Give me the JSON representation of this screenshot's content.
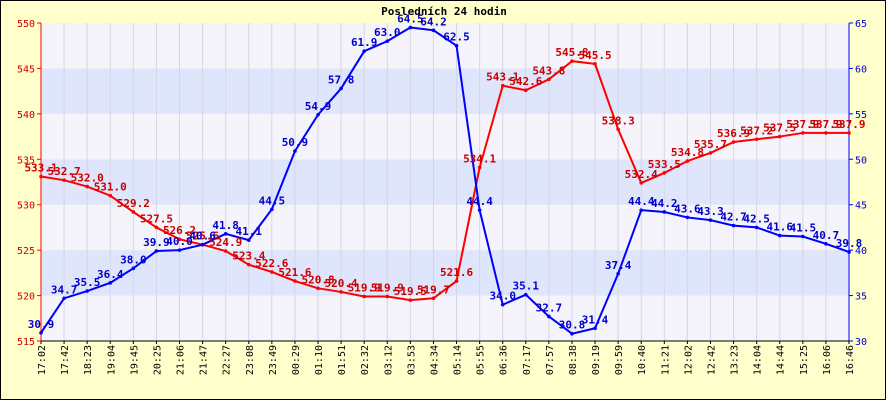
{
  "chart_data": {
    "type": "line",
    "title": "Posledních 24 hodin",
    "x": [
      "17:02",
      "17:42",
      "18:23",
      "19:04",
      "19:45",
      "20:25",
      "21:06",
      "21:47",
      "22:27",
      "23:08",
      "23:49",
      "00:29",
      "01:10",
      "01:51",
      "02:32",
      "03:12",
      "03:53",
      "04:34",
      "05:14",
      "05:55",
      "06:36",
      "07:17",
      "07:57",
      "08:38",
      "09:19",
      "09:59",
      "10:40",
      "11:21",
      "12:02",
      "12:42",
      "13:23",
      "14:04",
      "14:44",
      "15:25",
      "16:06",
      "16:46"
    ],
    "grid": true,
    "series": [
      {
        "name": "left-axis",
        "axis": "left",
        "color": "#ff0000",
        "label_color": "#cc0000",
        "ylim": [
          515,
          550
        ],
        "yticks": [
          515,
          520,
          525,
          530,
          535,
          540,
          545,
          550
        ],
        "values": [
          533.1,
          532.7,
          532.0,
          531.0,
          529.2,
          527.5,
          526.2,
          525.6,
          524.9,
          523.4,
          522.6,
          521.6,
          520.8,
          520.4,
          519.9,
          519.9,
          519.5,
          519.7,
          521.6,
          534.1,
          543.1,
          542.6,
          543.8,
          545.8,
          545.5,
          538.3,
          532.4,
          533.5,
          534.8,
          535.7,
          536.9,
          537.2,
          537.5,
          537.9,
          537.9,
          537.9
        ],
        "labels": [
          "533.1",
          "532.7",
          "532.0",
          "531.0",
          "529.2",
          "527.5",
          "526.2",
          "525.6",
          "524.9",
          "523.4",
          "522.6",
          "521.6",
          "520.8",
          "520.4",
          "519.9",
          "519.9",
          "519.5",
          "519.7",
          "521.6",
          "534.1",
          "543.1",
          "542.6",
          "543.8",
          "545.8",
          "545.5",
          "538.3",
          "532.4",
          "533.5",
          "534.8",
          "535.7",
          "536.9",
          "537.2",
          "537.5",
          "537.9",
          "537.9",
          "537.9"
        ]
      },
      {
        "name": "right-axis",
        "axis": "right",
        "color": "#0000ff",
        "label_color": "#0000cc",
        "ylim": [
          30,
          65
        ],
        "yticks": [
          30,
          35,
          40,
          45,
          50,
          55,
          60,
          65
        ],
        "values": [
          30.9,
          34.7,
          35.5,
          36.4,
          38.0,
          39.9,
          40.0,
          40.6,
          41.8,
          41.1,
          44.5,
          50.9,
          54.9,
          57.8,
          61.9,
          63.0,
          64.5,
          64.2,
          62.5,
          44.4,
          34.0,
          35.1,
          32.7,
          30.8,
          31.4,
          37.4,
          44.4,
          44.2,
          43.6,
          43.3,
          42.7,
          42.5,
          41.6,
          41.5,
          40.7,
          39.8
        ],
        "labels": [
          "30.9",
          "34.7",
          "35.5",
          "36.4",
          "38.0",
          "39.9",
          "40.0",
          "40.6",
          "41.8",
          "41.1",
          "44.5",
          "50.9",
          "54.9",
          "57.8",
          "61.9",
          "63.0",
          "64.5",
          "64.2",
          "62.5",
          "44.4",
          "34.0",
          "35.1",
          "32.7",
          "30.8",
          "31.4",
          "37.4",
          "44.4",
          "44.2",
          "43.6",
          "43.3",
          "42.7",
          "42.5",
          "41.6",
          "41.5",
          "40.7",
          "39.8"
        ]
      }
    ]
  }
}
